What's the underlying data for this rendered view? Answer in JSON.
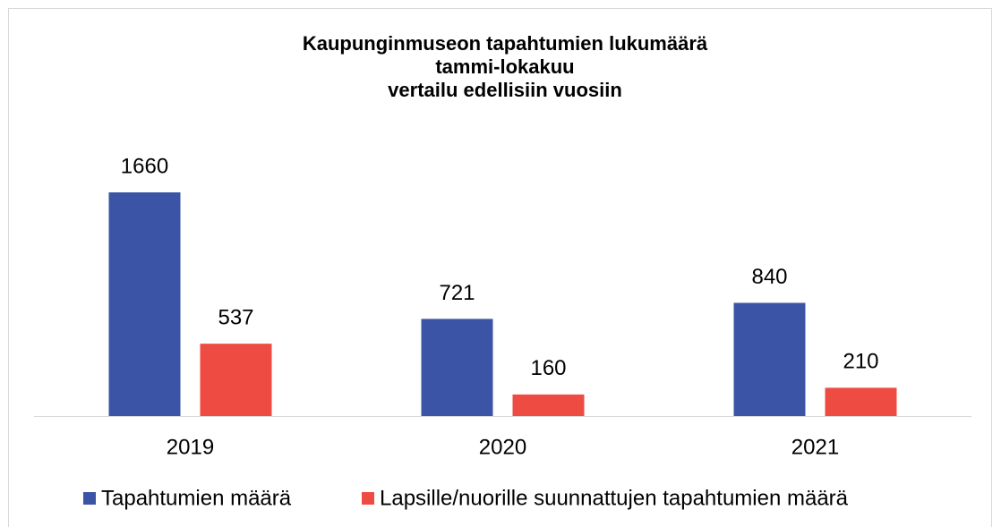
{
  "chart_data": {
    "type": "bar",
    "title": [
      "Kaupunginmuseon tapahtumien lukumäärä",
      "tammi-lokakuu",
      "vertailu edellisiin vuosiin"
    ],
    "categories": [
      "2019",
      "2020",
      "2021"
    ],
    "series": [
      {
        "name": "Tapahtumien määrä",
        "color": "#3b54a5",
        "values": [
          1660,
          721,
          840
        ]
      },
      {
        "name": "Lapsille/nuorille suunnattujen tapahtumien määrä",
        "color": "#ee4b43",
        "values": [
          537,
          160,
          210
        ]
      }
    ]
  }
}
